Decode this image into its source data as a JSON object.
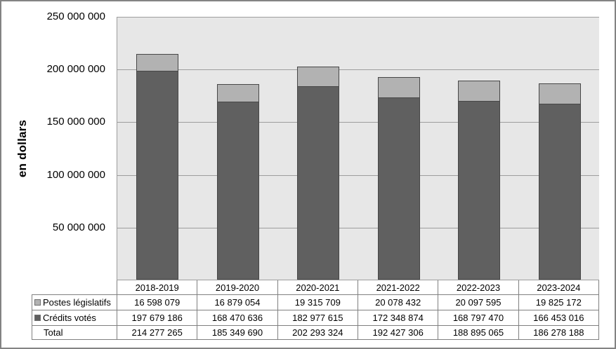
{
  "chart_data": {
    "type": "bar",
    "stacked": true,
    "title": "",
    "ylabel": "en dollars",
    "xlabel": "",
    "ylim": [
      0,
      250000000
    ],
    "ytick_interval": 50000000,
    "grid": true,
    "legend_position": "data-table-left",
    "plot_background": "#e7e7e7",
    "gridline_color": "#9d9d9d",
    "categories": [
      "2018-2019",
      "2019-2020",
      "2020-2021",
      "2021-2022",
      "2022-2023",
      "2023-2024"
    ],
    "y_ticks": [
      {
        "value": 250000000,
        "label": "250 000 000"
      },
      {
        "value": 200000000,
        "label": "200 000 000"
      },
      {
        "value": 150000000,
        "label": "150 000 000"
      },
      {
        "value": 100000000,
        "label": "100 000 000"
      },
      {
        "value": 50000000,
        "label": "50 000 000"
      }
    ],
    "series": [
      {
        "name": "Postes législatifs",
        "color": "#b2b2b2",
        "border_color": "#474747",
        "values": [
          16598079,
          16879054,
          19315709,
          20078432,
          20097595,
          19825172
        ],
        "labels": [
          "16 598 079",
          "16 879 054",
          "19 315 709",
          "20 078 432",
          "20 097 595",
          "19 825 172"
        ]
      },
      {
        "name": "Crédits votés",
        "color": "#606060",
        "border_color": "#474747",
        "values": [
          197679186,
          168470636,
          182977615,
          172348874,
          168797470,
          166453016
        ],
        "labels": [
          "197 679 186",
          "168 470 636",
          "182 977 615",
          "172 348 874",
          "168 797 470",
          "166 453 016"
        ]
      }
    ],
    "totals": {
      "name": "Total",
      "values": [
        214277265,
        185349690,
        202293324,
        192427306,
        188895065,
        186278188
      ],
      "labels": [
        "214 277 265",
        "185 349 690",
        "202 293 324",
        "192 427 306",
        "188 895 065",
        "186 278 188"
      ]
    }
  }
}
